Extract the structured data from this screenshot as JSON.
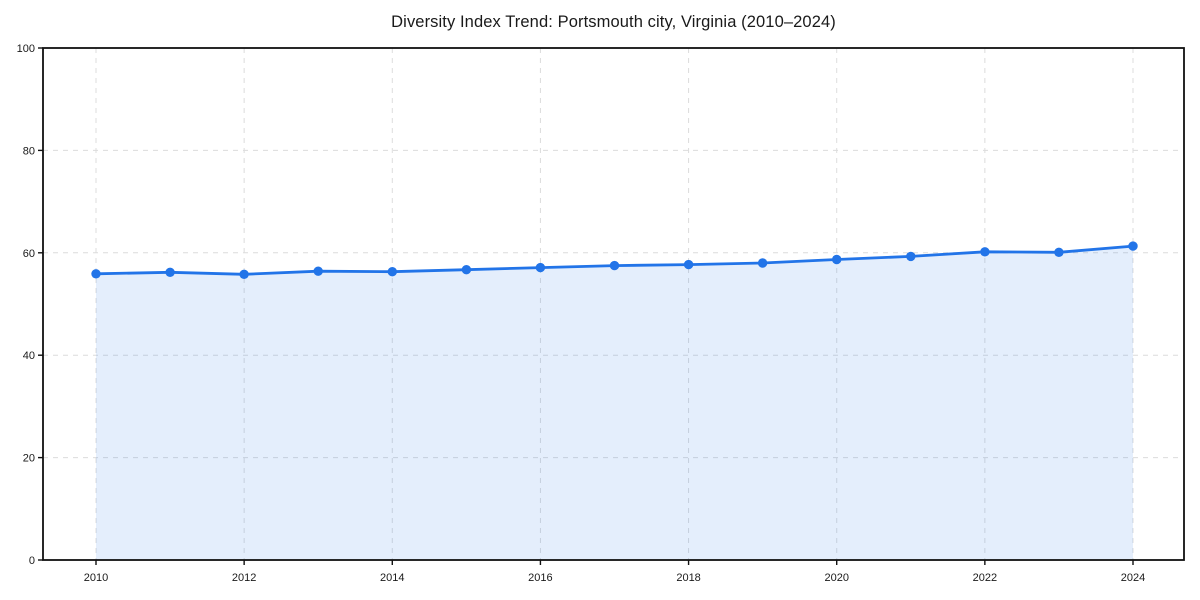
{
  "figure": {
    "background": "#ffffff"
  },
  "chart_data": {
    "type": "line",
    "title": "Diversity Index Trend: Portsmouth city, Virginia (2010–2024)",
    "xlabel": "",
    "ylabel": "",
    "series": [
      {
        "name": "Diversity Index",
        "x": [
          2010,
          2011,
          2012,
          2013,
          2014,
          2015,
          2016,
          2017,
          2018,
          2019,
          2020,
          2021,
          2022,
          2023,
          2024
        ],
        "values": [
          55.9,
          56.2,
          55.8,
          56.4,
          56.3,
          56.7,
          57.1,
          57.5,
          57.7,
          58.0,
          58.7,
          59.3,
          60.2,
          60.1,
          61.3
        ]
      }
    ],
    "x_range": [
      2010,
      2024
    ],
    "ylim": [
      0,
      100
    ],
    "ytick_values": [
      0,
      20,
      40,
      60,
      80,
      100
    ],
    "ytick_labels": [
      "0",
      "20",
      "40",
      "60",
      "80",
      "100"
    ],
    "xtick_values": [
      2010,
      2012,
      2014,
      2016,
      2018,
      2020,
      2022,
      2024
    ],
    "xtick_labels": [
      "2010",
      "2012",
      "2014",
      "2016",
      "2018",
      "2020",
      "2022",
      "2024"
    ],
    "grid": "dashed",
    "legend_position": "none",
    "area_fill": true,
    "colors": {
      "line": "#2274e8",
      "marker": "#2274e8",
      "area": "#2274e8",
      "area_opacity": 0.12,
      "grid": "#dcdcdc",
      "spine": "#111111",
      "tick": "#111111",
      "text": "#1a1a1a"
    }
  }
}
